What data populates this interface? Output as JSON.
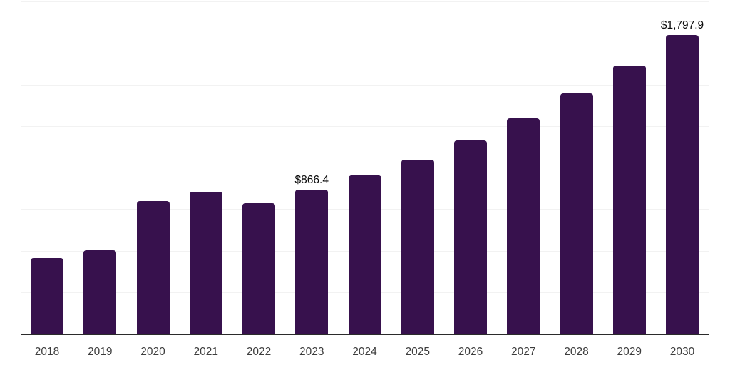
{
  "chart_data": {
    "type": "bar",
    "title": "",
    "xlabel": "",
    "ylabel": "",
    "categories": [
      "2018",
      "2019",
      "2020",
      "2021",
      "2022",
      "2023",
      "2024",
      "2025",
      "2026",
      "2027",
      "2028",
      "2029",
      "2030"
    ],
    "values": [
      455,
      503,
      798,
      855,
      786,
      866.4,
      953,
      1048,
      1163,
      1297,
      1446,
      1614,
      1797.9
    ],
    "data_labels": {
      "2023": "$866.4",
      "2030": "$1,797.9"
    },
    "ylim": [
      0,
      2000
    ],
    "gridline_step": 250,
    "grid": true,
    "legend": "none",
    "colors": {
      "bar": "#37114d",
      "gridline": "#f2f2f2",
      "axis_line": "#2b2b2b",
      "tick_label": "#3d3d3d",
      "data_label": "#0a0a0a"
    }
  }
}
